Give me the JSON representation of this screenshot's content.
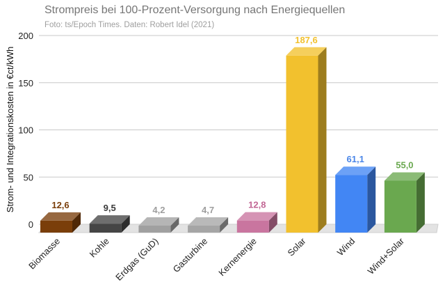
{
  "chart_data": {
    "type": "bar",
    "title": "Strompreis bei 100-Prozent-Versorgung nach Energiequellen",
    "subtitle": "Foto: ts/Epoch Times. Daten: Robert Idel (2021)",
    "xlabel": "",
    "ylabel": "Strom- und Integrationskosten in €ct/kWh",
    "ylim": [
      0,
      200
    ],
    "yticks": [
      "0",
      "50",
      "100",
      "150",
      "200"
    ],
    "grid": true,
    "categories": [
      "Biomasse",
      "Kohle",
      "Erdgas (GuD)",
      "Gasturbine",
      "Kernenergie",
      "Solar",
      "Wind",
      "Wind+Solar"
    ],
    "values": [
      12.6,
      9.5,
      4.2,
      4.7,
      12.8,
      187.6,
      61.1,
      55.0
    ],
    "value_labels": [
      "12,6",
      "9,5",
      "4,2",
      "4,7",
      "12,8",
      "187,6",
      "61,1",
      "55,0"
    ],
    "colors": [
      "#7a3e0a",
      "#454545",
      "#a0a0a0",
      "#a5a5a5",
      "#c9759f",
      "#f2c12e",
      "#4286f4",
      "#6aa84f"
    ],
    "label_colors": [
      "#7a3e0a",
      "#3a3a3a",
      "#9e9e9e",
      "#9e9e9e",
      "#c26694",
      "#f2c12e",
      "#4a86e8",
      "#6aa84f"
    ]
  }
}
